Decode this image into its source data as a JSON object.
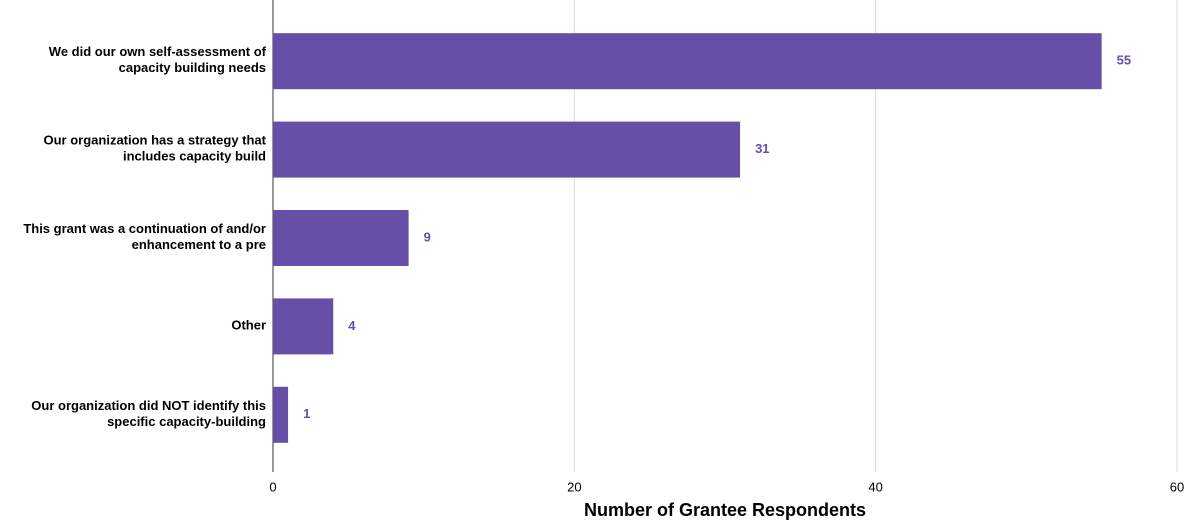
{
  "chart_data": {
    "type": "bar",
    "orientation": "horizontal",
    "categories": [
      "We did our own self-assessment of capacity building needs",
      "Our organization has a strategy that includes capacity build",
      "This grant was a continuation of and/or enhancement to a pre",
      "Other",
      "Our organization did NOT identify this specific capacity-building"
    ],
    "values": [
      55,
      31,
      9,
      4,
      1
    ],
    "color": "#674ea7",
    "xlabel": "Number of Grantee Respondents",
    "xlim": [
      0,
      60
    ],
    "xticks": [
      0,
      20,
      40,
      60
    ],
    "grid": true,
    "data_labels": true
  }
}
